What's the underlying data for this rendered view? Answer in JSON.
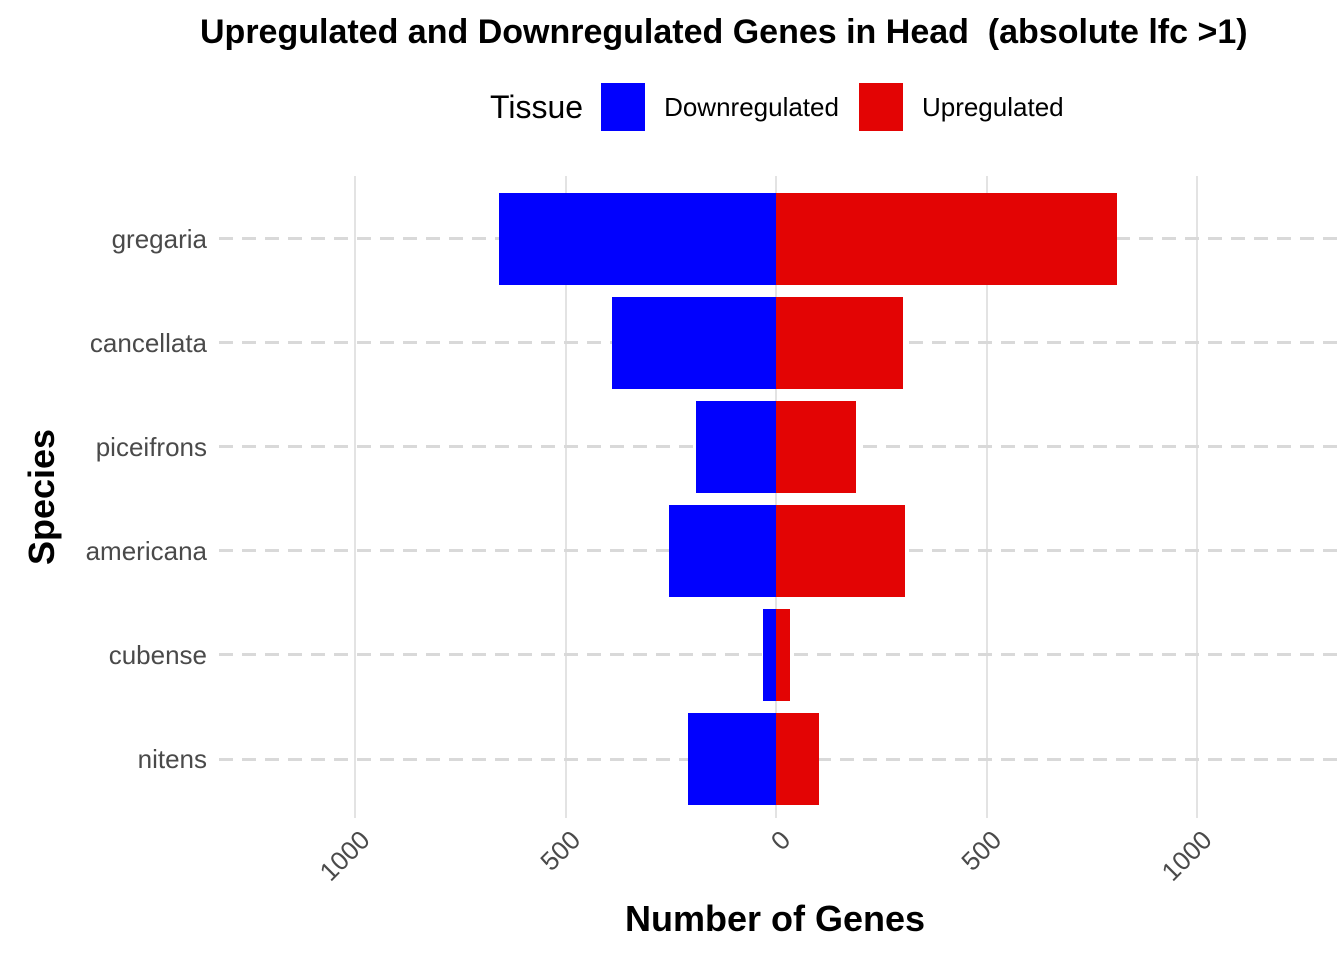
{
  "title": "Upregulated and Downregulated Genes in Head  (absolute lfc >1)",
  "legend": {
    "title": "Tissue",
    "items": [
      {
        "label": "Downregulated",
        "color": "#0101FE"
      },
      {
        "label": "Upregulated",
        "color": "#E30404"
      }
    ]
  },
  "chart_data": {
    "type": "bar",
    "orientation": "horizontal-diverging",
    "title": "Upregulated and Downregulated Genes in Head  (absolute lfc >1)",
    "xlabel": "Number of Genes",
    "ylabel": "Species",
    "categories": [
      "gregaria",
      "cancellata",
      "piceifrons",
      "americana",
      "cubense",
      "nitens"
    ],
    "series": [
      {
        "name": "Downregulated",
        "color": "#0101FE",
        "direction": "left",
        "values": [
          660,
          390,
          190,
          255,
          33,
          210
        ]
      },
      {
        "name": "Upregulated",
        "color": "#E30404",
        "direction": "right",
        "values": [
          810,
          300,
          190,
          305,
          32,
          100
        ]
      }
    ],
    "x_ticks": [
      {
        "value": -1000,
        "label": "1000"
      },
      {
        "value": -500,
        "label": "500"
      },
      {
        "value": 0,
        "label": "0"
      },
      {
        "value": 500,
        "label": "500"
      },
      {
        "value": 1000,
        "label": "1000"
      }
    ],
    "xlim": [
      -1324,
      1348
    ],
    "grid": true,
    "grid_style": {
      "vertical": "solid",
      "horizontal": "dashed"
    },
    "legend_position": "top",
    "colors": {
      "downregulated": "#0101FE",
      "upregulated": "#E30404",
      "grid": "#E3E3E3",
      "axis_text": "#4A4A4A"
    }
  }
}
